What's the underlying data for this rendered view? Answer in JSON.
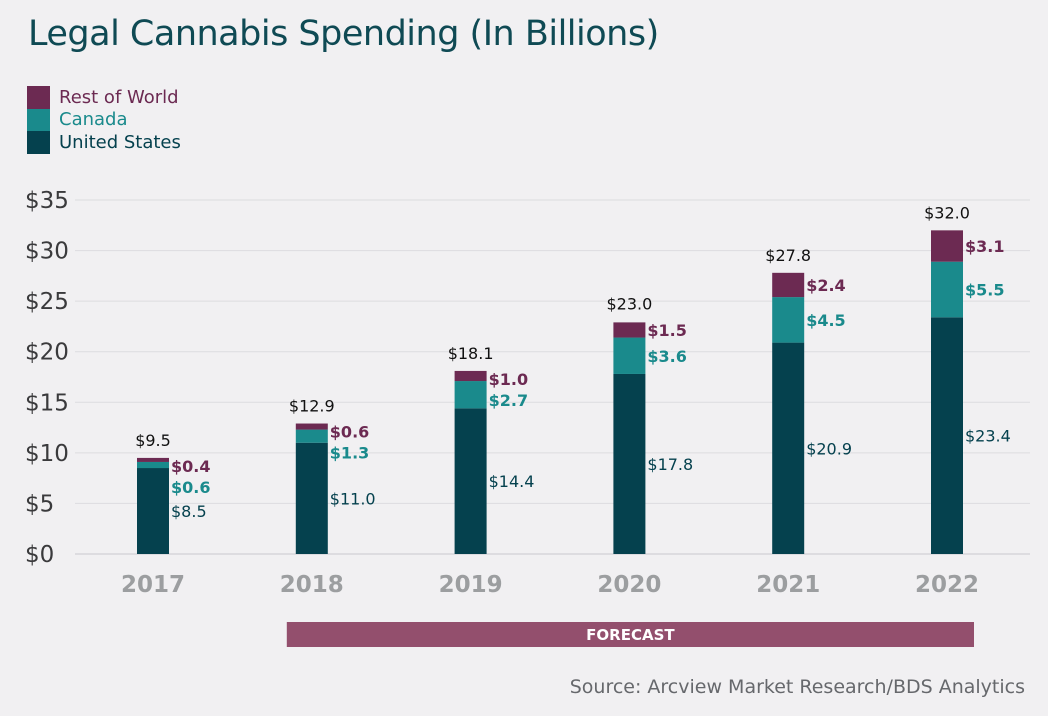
{
  "chart_data": {
    "type": "bar",
    "stacked": true,
    "title": "Legal Cannabis Spending (In Billions)",
    "xlabel": "",
    "ylabel": "",
    "categories": [
      "2017",
      "2018",
      "2019",
      "2020",
      "2021",
      "2022"
    ],
    "totals": [
      "$9.5",
      "$12.9",
      "$18.1",
      "$23.0",
      "$27.8",
      "$32.0"
    ],
    "total_values": [
      9.5,
      12.9,
      18.1,
      23.0,
      27.8,
      32.0
    ],
    "ylim": [
      0,
      35
    ],
    "yticks": [
      0,
      5,
      10,
      15,
      20,
      25,
      30,
      35
    ],
    "ytick_labels": [
      "$0",
      "$5",
      "$10",
      "$15",
      "$20",
      "$25",
      "$30",
      "$35"
    ],
    "grid": true,
    "legend_position": "top-left",
    "series": [
      {
        "name": "United States",
        "color": "#05414e",
        "values": [
          8.5,
          11.0,
          14.4,
          17.8,
          20.9,
          23.4
        ],
        "labels": [
          "$8.5",
          "$11.0",
          "$14.4",
          "$17.8",
          "$20.9",
          "$23.4"
        ]
      },
      {
        "name": "Canada",
        "color": "#1a8a8c",
        "values": [
          0.6,
          1.3,
          2.7,
          3.6,
          4.5,
          5.5
        ],
        "labels": [
          "$0.6",
          "$1.3",
          "$2.7",
          "$3.6",
          "$4.5",
          "$5.5"
        ]
      },
      {
        "name": "Rest of World",
        "color": "#6c2a52",
        "values": [
          0.4,
          0.6,
          1.0,
          1.5,
          2.4,
          3.1
        ],
        "labels": [
          "$0.4",
          "$0.6",
          "$1.0",
          "$1.5",
          "$2.4",
          "$3.1"
        ]
      }
    ],
    "annotation": {
      "text": "FORECAST",
      "from_category": "2018",
      "to_category": "2022",
      "color": "#934f6d"
    },
    "source": "Source: Arcview Market Research/BDS Analytics"
  }
}
